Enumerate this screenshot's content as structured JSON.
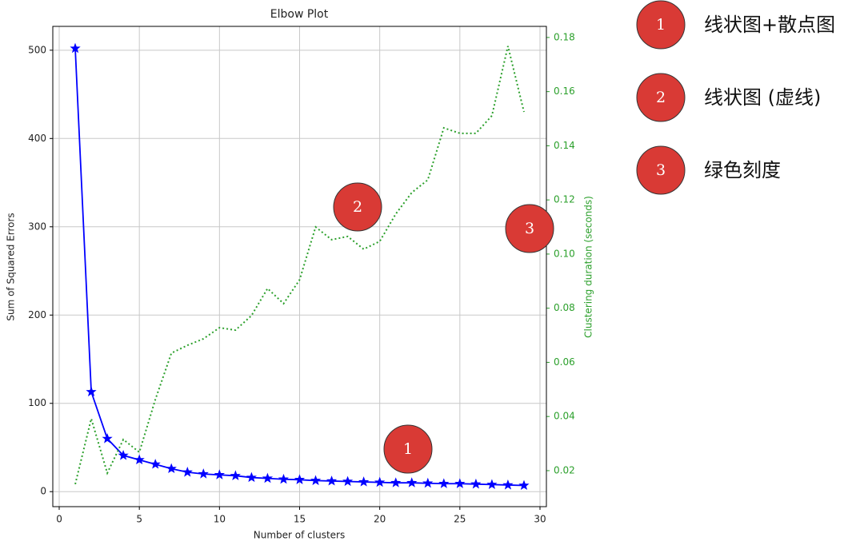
{
  "chart_data": {
    "type": "line",
    "title": "Elbow Plot",
    "xlabel": "Number of clusters",
    "ylabel": "Sum of Squared Errors",
    "y2label": "Clustering duration (seconds)",
    "x": [
      1,
      2,
      3,
      4,
      5,
      6,
      7,
      8,
      9,
      10,
      11,
      12,
      13,
      14,
      15,
      16,
      17,
      18,
      19,
      20,
      21,
      22,
      23,
      24,
      25,
      26,
      27,
      28,
      29
    ],
    "series": [
      {
        "color": "#0000ff",
        "marker": "star",
        "linestyle": "solid",
        "values": [
          502,
          113,
          60,
          41,
          36,
          31,
          26,
          22,
          20,
          19,
          18,
          16,
          15,
          14,
          13.5,
          12.5,
          12,
          11.5,
          11,
          10.5,
          10,
          10,
          9.5,
          9,
          9,
          8.5,
          8,
          7.5,
          7
        ]
      },
      {
        "color": "#2ca02c",
        "axis": "y2",
        "linestyle": "dotted",
        "values": [
          0.015,
          0.0392,
          0.0191,
          0.0315,
          0.0268,
          0.0463,
          0.0634,
          0.0663,
          0.0687,
          0.0728,
          0.0719,
          0.0773,
          0.0873,
          0.0817,
          0.0905,
          0.11,
          0.1053,
          0.1065,
          0.1018,
          0.1047,
          0.1148,
          0.1227,
          0.1274,
          0.1466,
          0.1446,
          0.1446,
          0.1511,
          0.1768,
          0.1525
        ]
      }
    ],
    "xlim": [
      -0.4,
      30.4
    ],
    "xticks": [
      0,
      5,
      10,
      15,
      20,
      25,
      30
    ],
    "ylim": [
      -17,
      527
    ],
    "yticks": [
      0,
      100,
      200,
      300,
      400,
      500
    ],
    "y2lim": [
      0.0067,
      0.1841
    ],
    "y2ticks": [
      0.02,
      0.04,
      0.06,
      0.08,
      {
        "value": 0.1,
        "label": "0.10"
      },
      0.12,
      0.14,
      0.16,
      0.18
    ],
    "y2color": "#2ca02c",
    "grid": true
  },
  "annotations": [
    {
      "label": "1",
      "text": "线状图+散点图"
    },
    {
      "label": "2",
      "text": "线状图 (虚线)"
    },
    {
      "label": "3",
      "text": "绿色刻度"
    }
  ]
}
